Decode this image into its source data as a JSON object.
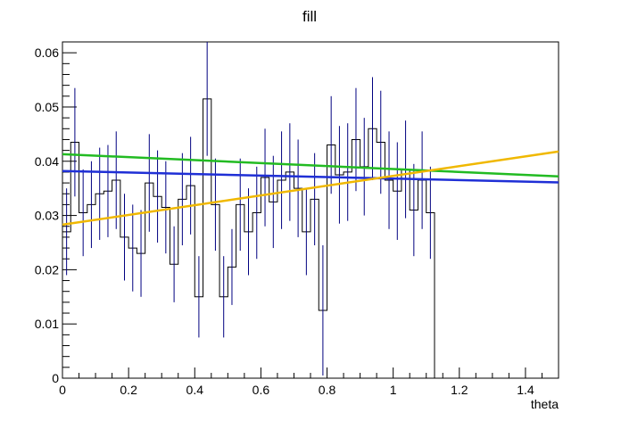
{
  "chart_data": {
    "type": "histogram",
    "title": "fill",
    "xlabel": "theta",
    "ylabel": "",
    "xlim": [
      0,
      1.5
    ],
    "ylim": [
      0,
      0.062
    ],
    "x_ticks": [
      0,
      0.2,
      0.4,
      0.6,
      0.8,
      1,
      1.2,
      1.4
    ],
    "x_tick_labels": [
      "0",
      "0.2",
      "0.4",
      "0.6",
      "0.8",
      "1",
      "1.2",
      "1.4"
    ],
    "y_ticks": [
      0,
      0.01,
      0.02,
      0.03,
      0.04,
      0.05,
      0.06
    ],
    "y_tick_labels": [
      "0",
      "0.01",
      "0.02",
      "0.03",
      "0.04",
      "0.05",
      "0.06"
    ],
    "bin_width": 0.025,
    "histogram": {
      "color": "#000080",
      "values": [
        0.027,
        0.0435,
        0.0305,
        0.032,
        0.034,
        0.0345,
        0.0365,
        0.026,
        0.024,
        0.023,
        0.036,
        0.0335,
        0.0315,
        0.021,
        0.033,
        0.0355,
        0.015,
        0.0515,
        0.032,
        0.015,
        0.0205,
        0.032,
        0.027,
        0.0305,
        0.037,
        0.0325,
        0.0365,
        0.038,
        0.035,
        0.027,
        0.033,
        0.0125,
        0.043,
        0.0375,
        0.038,
        0.044,
        0.039,
        0.046,
        0.0435,
        0.0365,
        0.0345,
        0.0385,
        0.031,
        0.0365,
        0.0305,
        0.0
      ],
      "errors": [
        0.008,
        0.01,
        0.008,
        0.008,
        0.0085,
        0.0085,
        0.009,
        0.008,
        0.008,
        0.008,
        0.009,
        0.0085,
        0.0085,
        0.007,
        0.0085,
        0.009,
        0.0075,
        0.0105,
        0.0085,
        0.0075,
        0.007,
        0.0085,
        0.008,
        0.0085,
        0.009,
        0.0085,
        0.009,
        0.009,
        0.009,
        0.008,
        0.0085,
        0.012,
        0.009,
        0.009,
        0.009,
        0.0095,
        0.009,
        0.0095,
        0.0095,
        0.009,
        0.009,
        0.009,
        0.0085,
        0.009,
        0.0085,
        0.0
      ]
    },
    "series": [
      {
        "type": "line",
        "color": "#22bb22",
        "x": [
          0,
          1.5
        ],
        "y": [
          0.0413,
          0.0372
        ]
      },
      {
        "type": "line",
        "color": "#1f2fd6",
        "x": [
          0,
          1.5
        ],
        "y": [
          0.0382,
          0.0361
        ]
      },
      {
        "type": "line",
        "color": "#f0b800",
        "x": [
          0,
          1.5
        ],
        "y": [
          0.0283,
          0.0418
        ]
      }
    ]
  }
}
